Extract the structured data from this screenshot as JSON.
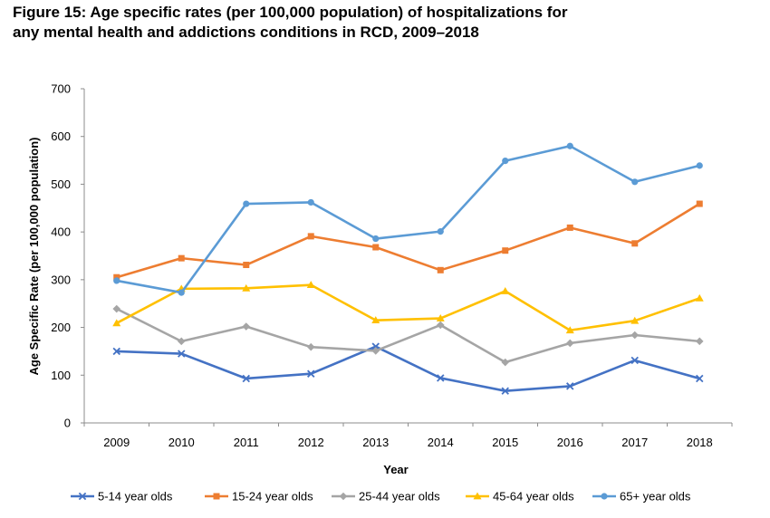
{
  "figure": {
    "title_line1": "Figure 15: Age specific rates (per 100,000 population) of hospitalizations for",
    "title_line2": "any mental health and addictions conditions in RCD, 2009–2018"
  },
  "chart_data": {
    "type": "line",
    "title": "Figure 15: Age specific rates (per 100,000 population) of hospitalizations for any mental health and addictions conditions in RCD, 2009–2018",
    "xlabel": "Year",
    "ylabel": "Age Specific Rate (per 100,000 population)",
    "ylim": [
      0,
      700
    ],
    "yticks": [
      0,
      100,
      200,
      300,
      400,
      500,
      600,
      700
    ],
    "grid": false,
    "legend_position": "bottom",
    "categories": [
      "2009",
      "2010",
      "2011",
      "2012",
      "2013",
      "2014",
      "2015",
      "2016",
      "2017",
      "2018"
    ],
    "series": [
      {
        "name": "5-14 year olds",
        "color": "#4472C4",
        "marker": "x",
        "values": [
          150,
          145,
          93,
          103,
          160,
          94,
          67,
          77,
          131,
          93
        ]
      },
      {
        "name": "15-24 year olds",
        "color": "#ED7D31",
        "marker": "square",
        "values": [
          305,
          345,
          331,
          391,
          368,
          320,
          361,
          409,
          376,
          459
        ]
      },
      {
        "name": "25-44 year olds",
        "color": "#A5A5A5",
        "marker": "diamond",
        "values": [
          239,
          171,
          202,
          159,
          151,
          205,
          127,
          167,
          184,
          171
        ]
      },
      {
        "name": "45-64 year olds",
        "color": "#FFC000",
        "marker": "triangle",
        "values": [
          209,
          281,
          282,
          289,
          215,
          219,
          276,
          194,
          214,
          261
        ]
      },
      {
        "name": "65+ year olds",
        "color": "#5B9BD5",
        "marker": "circle",
        "values": [
          298,
          273,
          459,
          462,
          386,
          401,
          549,
          580,
          505,
          539
        ]
      }
    ]
  }
}
